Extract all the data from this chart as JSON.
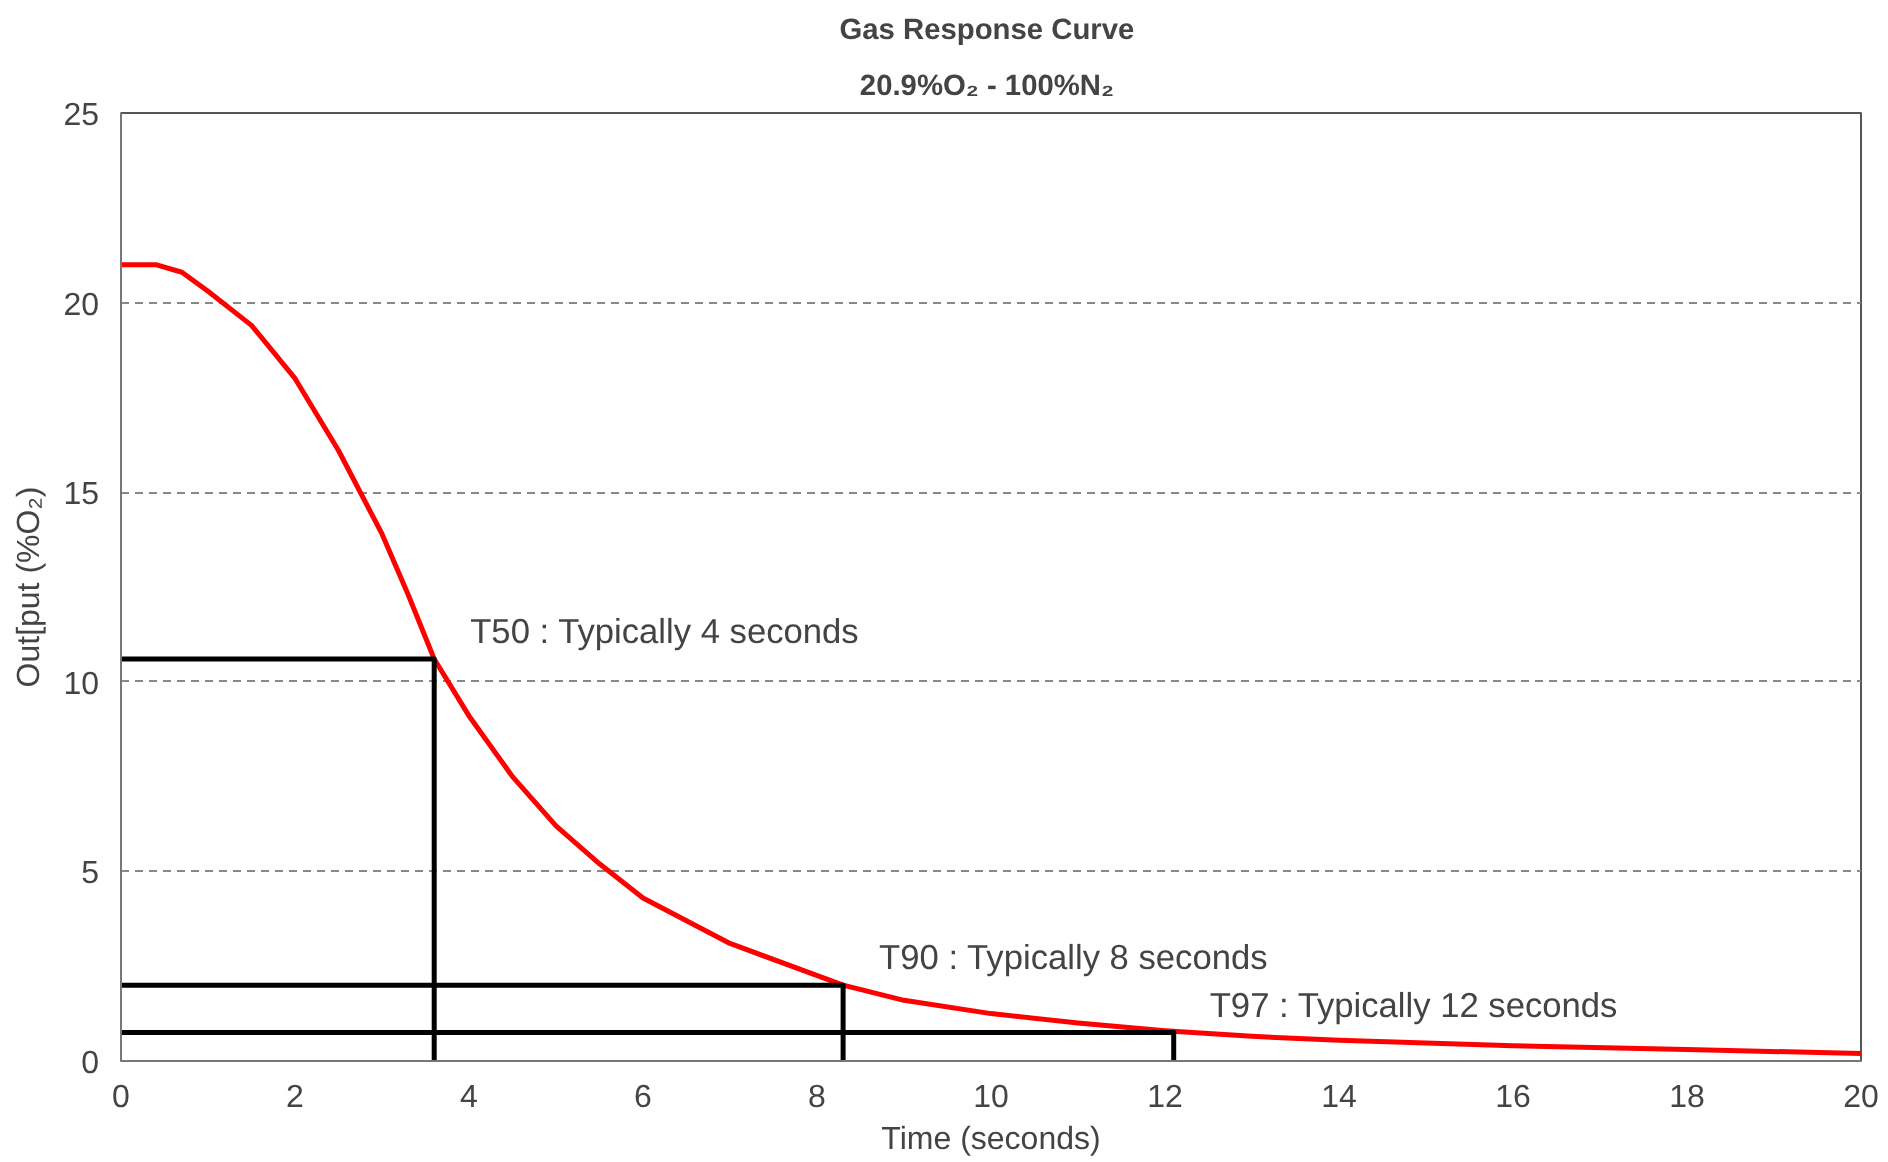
{
  "chart_data": {
    "type": "line",
    "title": "Gas Response  Curve",
    "subtitle": "20.9%O₂  - 100%N₂",
    "xlabel": "Time (seconds)",
    "ylabel": "Out[put (%O₂)",
    "xlim": [
      0,
      20
    ],
    "ylim": [
      0,
      25
    ],
    "xticks": [
      0,
      2,
      4,
      6,
      8,
      10,
      12,
      14,
      16,
      18,
      20
    ],
    "yticks": [
      0,
      5,
      10,
      15,
      20,
      25
    ],
    "grid": "y",
    "marker": "none",
    "series": [
      {
        "color": "#ff0000",
        "x": [
          0,
          0.4,
          0.7,
          1,
          1.5,
          2,
          2.5,
          3,
          3.3,
          3.6,
          4,
          4.5,
          5,
          5.5,
          6,
          7,
          8.3,
          9,
          10,
          11,
          12,
          13,
          14,
          16,
          18,
          20
        ],
        "values": [
          21.0,
          21.0,
          20.8,
          20.3,
          19.4,
          18.0,
          16.1,
          13.9,
          12.3,
          10.6,
          9.1,
          7.5,
          6.2,
          5.2,
          4.3,
          3.1,
          2.0,
          1.6,
          1.25,
          1.0,
          0.8,
          0.65,
          0.55,
          0.4,
          0.3,
          0.2
        ]
      },
      {
        "color": "#000000",
        "x": [
          0,
          3.6,
          3.6
        ],
        "values": [
          10.6,
          10.6,
          0
        ]
      },
      {
        "color": "#000000",
        "x": [
          0,
          8.3,
          8.3
        ],
        "values": [
          2.0,
          2.0,
          0
        ]
      },
      {
        "color": "#000000",
        "x": [
          0,
          12.1,
          12.1
        ],
        "values": [
          0.75,
          0.75,
          0
        ]
      }
    ],
    "annotations": [
      {
        "text": "T50 : Typically 4 seconds",
        "x": 3.6,
        "y": 10.6
      },
      {
        "text": "T90 : Typically 8 seconds",
        "x": 8.3,
        "y": 2.0
      },
      {
        "text": "T97 : Typically 12 seconds",
        "x": 12.1,
        "y": 0.75
      }
    ]
  }
}
